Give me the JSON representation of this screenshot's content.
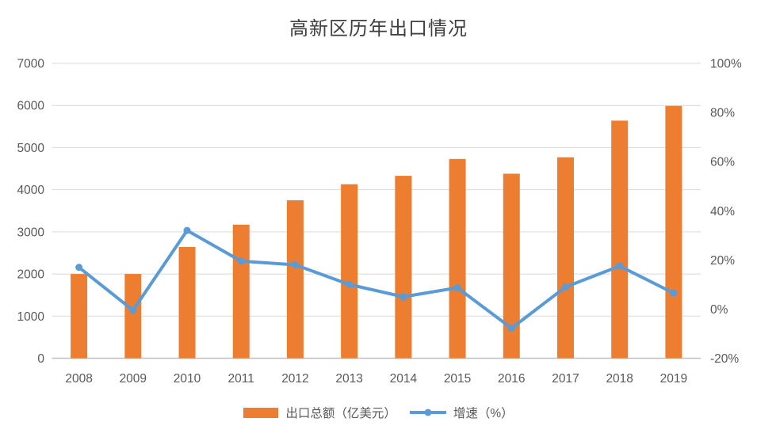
{
  "chart_data": {
    "type": "bar",
    "subtype": "combo-bar-line",
    "title": "高新区历年出口情况",
    "categories": [
      "2008",
      "2009",
      "2010",
      "2011",
      "2012",
      "2013",
      "2014",
      "2015",
      "2016",
      "2017",
      "2018",
      "2019"
    ],
    "series": [
      {
        "name": "出口总额（亿美元）",
        "type": "bar",
        "axis": "left",
        "color": "#ED7D31",
        "values": [
          2000,
          2000,
          2640,
          3170,
          3750,
          4130,
          4330,
          4730,
          4380,
          4770,
          5640,
          5990
        ]
      },
      {
        "name": "增速（%）",
        "type": "line",
        "axis": "right",
        "color": "#5B9BD5",
        "values": [
          17,
          -0.5,
          32,
          19.5,
          18,
          10,
          5,
          8.7,
          -7.8,
          9,
          17.5,
          6.5
        ]
      }
    ],
    "left_axis": {
      "min": 0,
      "max": 7000,
      "step": 1000,
      "ticks": [
        "0",
        "1000",
        "2000",
        "3000",
        "4000",
        "5000",
        "6000",
        "7000"
      ]
    },
    "right_axis": {
      "min": -20,
      "max": 100,
      "step": 20,
      "ticks": [
        "-20%",
        "0%",
        "20%",
        "40%",
        "60%",
        "80%",
        "100%"
      ]
    },
    "grid": "horizontal-only",
    "legend_position": "bottom",
    "colors": {
      "bar": "#ED7D31",
      "line": "#5B9BD5",
      "gridline": "#D9D9D9",
      "axis_line": "#BFBFBF",
      "tick_text": "#595959",
      "title_text": "#404040"
    }
  }
}
